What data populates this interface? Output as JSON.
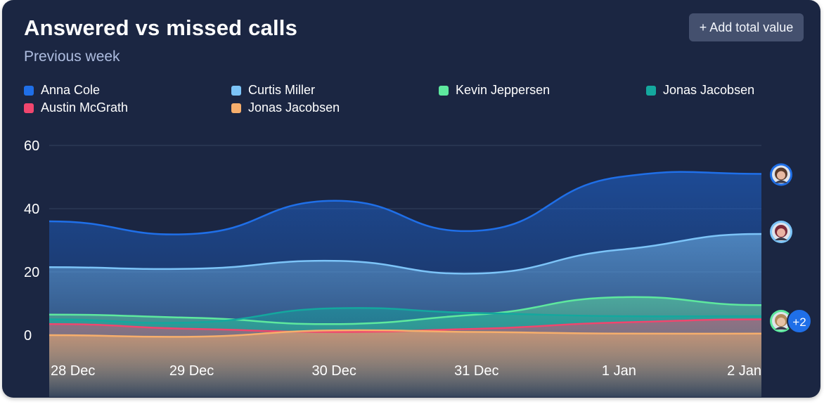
{
  "header": {
    "title": "Answered vs missed calls",
    "subtitle": "Previous week",
    "add_button_label": "+ Add total value",
    "more_badge": "+2"
  },
  "chart_data": {
    "type": "area",
    "title": "Answered vs missed calls",
    "subtitle": "Previous week",
    "categories": [
      "28 Dec",
      "29 Dec",
      "30 Dec",
      "31 Dec",
      "1 Jan",
      "2 Jan"
    ],
    "ylim": [
      0,
      60
    ],
    "yticks": [
      0,
      20,
      40,
      60
    ],
    "grid": true,
    "legend_position": "top",
    "series": [
      {
        "name": "Anna Cole",
        "color": "#1f6fe8",
        "values": [
          36,
          32,
          42.5,
          33,
          50,
          51
        ]
      },
      {
        "name": "Curtis Miller",
        "color": "#7cc4f8",
        "values": [
          21.5,
          21,
          23.5,
          19.5,
          27,
          32
        ]
      },
      {
        "name": "Kevin Jeppersen",
        "color": "#5ee89e",
        "values": [
          6.5,
          5.5,
          3.5,
          6.5,
          12,
          9.5
        ]
      },
      {
        "name": "Jonas Jacobsen",
        "color": "#14a89e",
        "values": [
          5,
          4,
          8.5,
          7,
          6,
          6
        ]
      },
      {
        "name": "Austin McGrath",
        "color": "#f0466e",
        "values": [
          3.5,
          2,
          1,
          2,
          4,
          5
        ]
      },
      {
        "name": "Jonas Jacobsen",
        "color": "#f6ae6c",
        "values": [
          0,
          -0.5,
          1.5,
          1,
          0.5,
          0.5
        ]
      }
    ]
  }
}
